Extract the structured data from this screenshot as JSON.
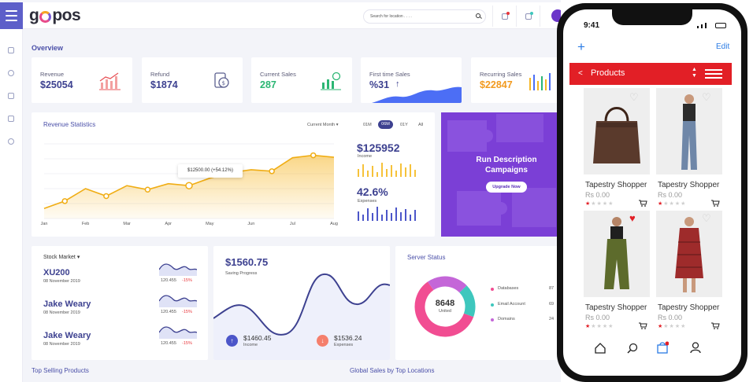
{
  "brand": {
    "logo_start": "g",
    "logo_end": "pos"
  },
  "search": {
    "placeholder": "Search for location . . . ."
  },
  "overview": {
    "title": "Overview"
  },
  "kpis": [
    {
      "label": "Revenue",
      "value": "$25054"
    },
    {
      "label": "Refund",
      "value": "$1874"
    },
    {
      "label": "Current Sales",
      "value": "287"
    },
    {
      "label": "First time Sales",
      "value": "%31"
    },
    {
      "label": "Recurring Sales",
      "value": "$22847"
    }
  ],
  "revenue": {
    "title": "Revenue Statistics",
    "filter": "Current Month",
    "ranges": [
      "01M",
      "06M",
      "01Y",
      "All"
    ],
    "active_range": "06M",
    "tooltip": "$12500.00",
    "tooltip_change": "(+54.12%)",
    "income_value": "$125952",
    "income_label": "Income",
    "expenses_value": "42.6%",
    "expenses_label": "Expenses"
  },
  "chart_data": {
    "type": "area",
    "categories": [
      "Jan",
      "Feb",
      "Mar",
      "Apr",
      "May",
      "Jun",
      "Jul",
      "Aug"
    ],
    "x": [
      0,
      1,
      2,
      3,
      4,
      5,
      6,
      7,
      8,
      9,
      10,
      11,
      12,
      13,
      14
    ],
    "values": [
      2,
      3.5,
      6,
      4.5,
      6.6,
      5.8,
      7,
      6.6,
      8.1,
      9.2,
      9.8,
      9.5,
      12.2,
      12.7,
      12.3
    ],
    "ylim": [
      0,
      15
    ]
  },
  "promo": {
    "title": "Run Description Campaigns",
    "button": "Upgrade Now"
  },
  "stocks": {
    "title": "Stock Market",
    "items": [
      {
        "name": "XU200",
        "date": "08 November 2019",
        "price": "120.455",
        "change": "-15%"
      },
      {
        "name": "Jake Weary",
        "date": "08 November 2019",
        "price": "120.455",
        "change": "-15%"
      },
      {
        "name": "Jake Weary",
        "date": "08 November 2019",
        "price": "120.455",
        "change": "-15%"
      }
    ]
  },
  "saving": {
    "value": "$1560.75",
    "label": "Saving Progress",
    "income_value": "$1460.45",
    "income_label": "Income",
    "expenses_value": "$1536.24",
    "expenses_label": "Expenses"
  },
  "server": {
    "title": "Server Status",
    "center_value": "8648",
    "center_label": "United",
    "legend": [
      {
        "label": "Databases",
        "value": "87",
        "color": "#f14d92"
      },
      {
        "label": "Email Account",
        "value": "69",
        "color": "#3ec7bd"
      },
      {
        "label": "Domains",
        "value": "24",
        "color": "#c466d8"
      }
    ]
  },
  "bottom": {
    "left": "Top Selling Products",
    "right": "Global Sales by Top Locations"
  },
  "phone": {
    "time": "9:41",
    "add": "+",
    "edit": "Edit",
    "header": "Products",
    "back": "<",
    "products": [
      {
        "name": "Tapestry Shopper",
        "price": "Rs 0.00",
        "rating": 1,
        "favorite": false
      },
      {
        "name": "Tapestry Shopper",
        "price": "Rs 0.00",
        "rating": 1,
        "favorite": false
      },
      {
        "name": "Tapestry Shopper",
        "price": "Rs 0.00",
        "rating": 1,
        "favorite": true
      },
      {
        "name": "Tapestry Shopper",
        "price": "Rs 0.00",
        "rating": 1,
        "favorite": false
      }
    ]
  },
  "colors": {
    "primary": "#5d5fc9",
    "accent": "#f6b625",
    "promo": "#7b3fd6",
    "red": "#e21f26",
    "negative": "#e8363b"
  }
}
